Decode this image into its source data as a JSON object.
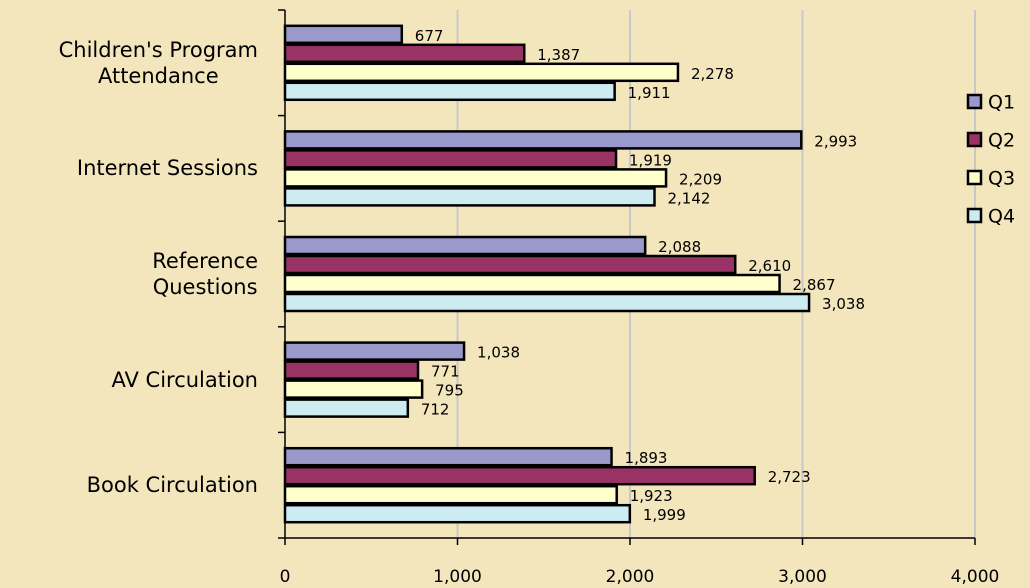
{
  "chart_data": {
    "type": "hbar",
    "categories": [
      "Children's Program\nAttendance",
      "Internet Sessions",
      "Reference\nQuestions",
      "AV Circulation",
      "Book Circulation"
    ],
    "series": [
      {
        "name": "Q1",
        "color": "#9999cc",
        "values": [
          677,
          2993,
          2088,
          1038,
          1893
        ],
        "value_labels": [
          "677",
          "2,993",
          "2,088",
          "1,038",
          "1,893"
        ]
      },
      {
        "name": "Q2",
        "color": "#993366",
        "values": [
          1387,
          1919,
          2610,
          771,
          2723
        ],
        "value_labels": [
          "1,387",
          "1,919",
          "2,610",
          "771",
          "2,723"
        ]
      },
      {
        "name": "Q3",
        "color": "#ffffcc",
        "values": [
          2278,
          2209,
          2867,
          795,
          1923
        ],
        "value_labels": [
          "2,278",
          "2,209",
          "2,867",
          "795",
          "1,923"
        ]
      },
      {
        "name": "Q4",
        "color": "#ccecf2",
        "values": [
          1911,
          2142,
          3038,
          712,
          1999
        ],
        "value_labels": [
          "1,911",
          "2,142",
          "3,038",
          "712",
          "1,999"
        ]
      }
    ],
    "xlim": [
      0,
      4000
    ],
    "xticks": [
      0,
      {
        "value": 1000,
        "label": "1,000"
      },
      {
        "value": 2000,
        "label": "2,000"
      },
      {
        "value": 3000,
        "label": "3,000"
      },
      {
        "value": 4000,
        "label": "4,000"
      }
    ],
    "grid": true,
    "legend": "right"
  }
}
